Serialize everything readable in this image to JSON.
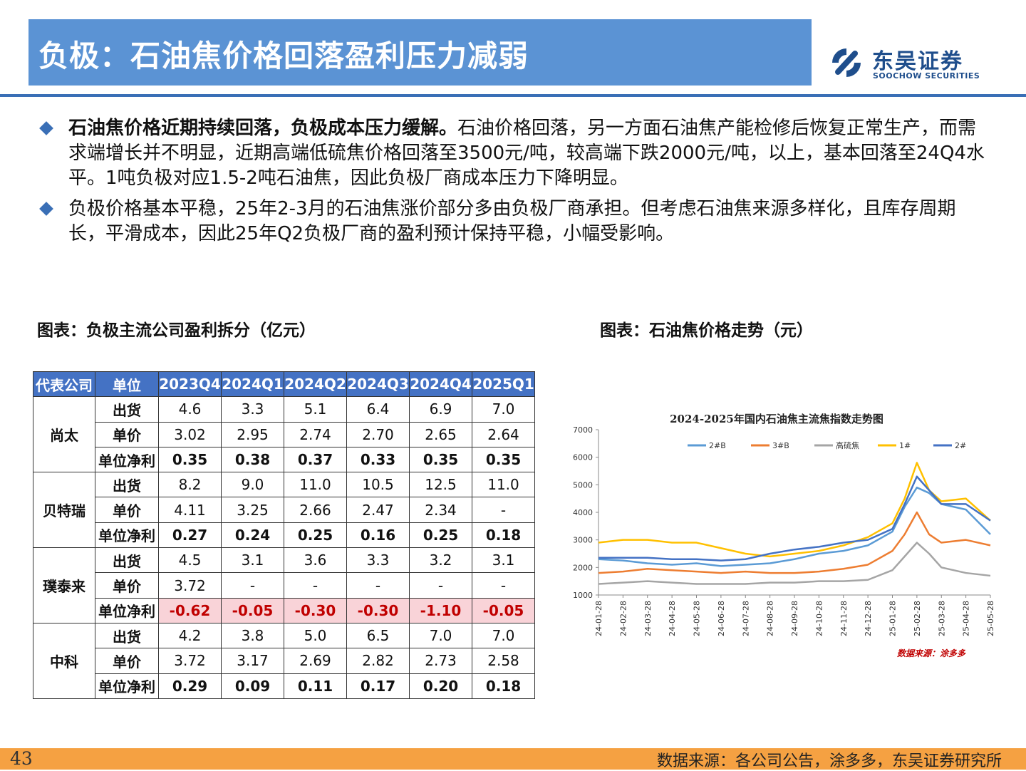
{
  "header": {
    "title": "负极：石油焦价格回落盈利压力减弱",
    "logo_cn": "东吴证券",
    "logo_en": "SOOCHOW SECURITIES"
  },
  "bullets": [
    {
      "strong": "石油焦价格近期持续回落，负极成本压力缓解。",
      "text": "石油价格回落，另一方面石油焦产能检修后恢复正常生产，而需求端增长并不明显，近期高端低硫焦价格回落至3500元/吨，较高端下跌2000元/吨，以上，基本回落至24Q4水平。1吨负极对应1.5-2吨石油焦，因此负极厂商成本压力下降明显。"
    },
    {
      "strong": "",
      "text": "负极价格基本平稳，25年2-3月的石油焦涨价部分多由负极厂商承担。但考虑石油焦来源多样化，且库存周期长，平滑成本，因此25年Q2负极厂商的盈利预计保持平稳，小幅受影响。"
    }
  ],
  "captions": {
    "left": "图表：负极主流公司盈利拆分（亿元）",
    "right": "图表：石油焦价格走势（元）"
  },
  "table": {
    "headers": [
      "代表公司",
      "单位",
      "2023Q4",
      "2024Q1",
      "2024Q2",
      "2024Q3",
      "2024Q4",
      "2025Q1"
    ],
    "groups": [
      {
        "company": "尚太",
        "rows": [
          {
            "unit": "出货",
            "values": [
              "4.6",
              "3.3",
              "5.1",
              "6.4",
              "6.9",
              "7.0"
            ]
          },
          {
            "unit": "单价",
            "values": [
              "3.02",
              "2.95",
              "2.74",
              "2.70",
              "2.65",
              "2.64"
            ]
          },
          {
            "unit": "单位净利",
            "values": [
              "0.35",
              "0.38",
              "0.37",
              "0.33",
              "0.35",
              "0.35"
            ]
          }
        ]
      },
      {
        "company": "贝特瑞",
        "rows": [
          {
            "unit": "出货",
            "values": [
              "8.2",
              "9.0",
              "11.0",
              "10.5",
              "12.5",
              "11.0"
            ]
          },
          {
            "unit": "单价",
            "values": [
              "4.11",
              "3.25",
              "2.66",
              "2.47",
              "2.34",
              "-"
            ]
          },
          {
            "unit": "单位净利",
            "values": [
              "0.27",
              "0.24",
              "0.25",
              "0.16",
              "0.25",
              "0.18"
            ]
          }
        ]
      },
      {
        "company": "璞泰来",
        "rows": [
          {
            "unit": "出货",
            "values": [
              "4.5",
              "3.1",
              "3.6",
              "3.3",
              "3.2",
              "3.1"
            ]
          },
          {
            "unit": "单价",
            "values": [
              "3.72",
              "-",
              "-",
              "-",
              "-",
              "-"
            ]
          },
          {
            "unit": "单位净利",
            "values": [
              "-0.62",
              "-0.05",
              "-0.30",
              "-0.30",
              "-1.10",
              "-0.05"
            ]
          }
        ]
      },
      {
        "company": "中科",
        "rows": [
          {
            "unit": "出货",
            "values": [
              "4.2",
              "3.8",
              "5.0",
              "6.5",
              "7.0",
              "7.0"
            ]
          },
          {
            "unit": "单价",
            "values": [
              "3.72",
              "3.17",
              "2.69",
              "2.82",
              "2.73",
              "2.58"
            ]
          },
          {
            "unit": "单位净利",
            "values": [
              "0.29",
              "0.09",
              "0.11",
              "0.17",
              "0.20",
              "0.18"
            ]
          }
        ]
      }
    ]
  },
  "chart_data": {
    "type": "line",
    "title": "2024-2025年国内石油焦主流焦指数走势图",
    "source_note": "数据来源：涂多多",
    "ylim": [
      1000,
      7000
    ],
    "yticks": [
      1000,
      2000,
      3000,
      4000,
      5000,
      6000,
      7000
    ],
    "xticks": [
      "24-01-28",
      "24-02-28",
      "24-03-28",
      "24-04-28",
      "24-05-28",
      "24-06-28",
      "24-07-28",
      "24-08-28",
      "24-09-28",
      "24-10-28",
      "24-11-28",
      "24-12-28",
      "25-01-28",
      "25-02-28",
      "25-03-28",
      "25-04-28",
      "25-05-28"
    ],
    "x": [
      0,
      1,
      2,
      3,
      4,
      5,
      6,
      7,
      8,
      9,
      10,
      11,
      12,
      12.5,
      13,
      13.5,
      14,
      15,
      16
    ],
    "series": [
      {
        "name": "2#B",
        "color": "#5b9bd5",
        "values": [
          2300,
          2250,
          2150,
          2100,
          2150,
          2050,
          2100,
          2150,
          2300,
          2500,
          2600,
          2800,
          3300,
          4200,
          4900,
          4700,
          4300,
          4100,
          3200
        ]
      },
      {
        "name": "3#B",
        "color": "#ed7d31",
        "values": [
          1800,
          1850,
          1950,
          1900,
          1850,
          1800,
          1850,
          1800,
          1800,
          1850,
          1950,
          2100,
          2600,
          3200,
          4000,
          3200,
          2900,
          3000,
          2800
        ]
      },
      {
        "name": "高硫焦",
        "color": "#a5a5a5",
        "values": [
          1400,
          1450,
          1500,
          1450,
          1400,
          1400,
          1400,
          1450,
          1450,
          1500,
          1500,
          1550,
          1900,
          2400,
          2900,
          2500,
          2000,
          1800,
          1700
        ]
      },
      {
        "name": "1#",
        "color": "#ffc000",
        "values": [
          2900,
          3000,
          3000,
          2900,
          2900,
          2700,
          2500,
          2400,
          2500,
          2600,
          2800,
          3100,
          3600,
          4500,
          5800,
          4800,
          4400,
          4500,
          3700
        ]
      },
      {
        "name": "2#",
        "color": "#4472c4",
        "values": [
          2350,
          2350,
          2350,
          2300,
          2300,
          2250,
          2300,
          2500,
          2650,
          2750,
          2900,
          3000,
          3400,
          4300,
          5300,
          4800,
          4300,
          4300,
          3700
        ]
      }
    ]
  },
  "footer": {
    "page": "43",
    "source": "数据来源：各公司公告，涂多多，东吴证券研究所"
  }
}
